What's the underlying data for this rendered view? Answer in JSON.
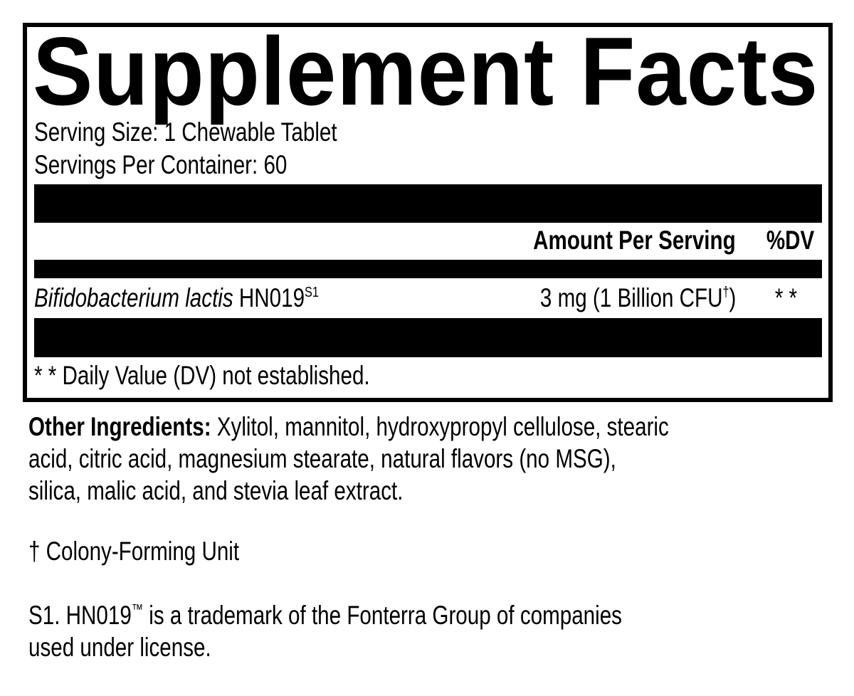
{
  "panel": {
    "title": "Supplement Facts",
    "serving_size": "Serving Size: 1 Chewable Tablet",
    "servings_per_container": "Servings Per Container: 60",
    "header_amount": "Amount Per Serving",
    "header_dv": "%DV",
    "ingredient": {
      "name_italic": "Bifidobacterium lactis",
      "name_strain": " HN019",
      "name_sup": "S1",
      "amount": "3 mg (1 Billion CFU",
      "amount_sup": "†",
      "amount_close": ")",
      "dv": "* *"
    },
    "footnote": "* *  Daily Value (DV) not established."
  },
  "other_ingredients": {
    "label": "Other Ingredients:",
    "lines": [
      " Xylitol, mannitol, hydroxypropyl cellulose, stearic",
      "acid, citric acid, magnesium stearate, natural flavors (no MSG),",
      "silica, malic acid, and stevia leaf extract."
    ]
  },
  "dagger_note": "† Colony-Forming Unit",
  "trademark_note": {
    "prefix": "S1. HN019",
    "tm": "™",
    "line1_rest": " is a trademark of the Fonterra Group of companies",
    "line2": "used under license."
  }
}
